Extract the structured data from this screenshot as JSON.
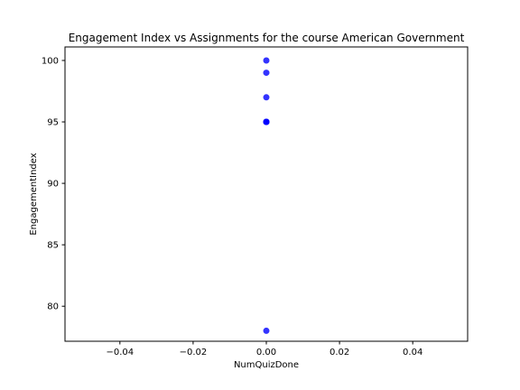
{
  "chart_data": {
    "type": "scatter",
    "title": "Engagement Index vs Assignments for the course American Government",
    "xlabel": "NumQuizDone",
    "ylabel": "EngagementIndex",
    "xlim": [
      -0.055,
      0.055
    ],
    "ylim": [
      77.15,
      101.1
    ],
    "xticks": [
      -0.04,
      -0.02,
      0.0,
      0.02,
      0.04
    ],
    "xtick_labels": [
      "−0.04",
      "−0.02",
      "0.00",
      "0.02",
      "0.04"
    ],
    "yticks": [
      80,
      85,
      90,
      95,
      100
    ],
    "ytick_labels": [
      "80",
      "85",
      "90",
      "95",
      "100"
    ],
    "grid": false,
    "series": [
      {
        "color": "#0000ff",
        "x": [
          0,
          0,
          0,
          0,
          0,
          0,
          0,
          0
        ],
        "y": [
          100,
          99,
          97,
          95,
          95,
          95,
          95,
          78
        ]
      }
    ]
  }
}
